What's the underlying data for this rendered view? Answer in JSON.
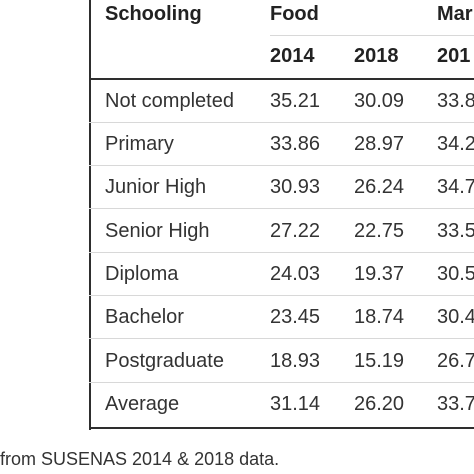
{
  "table": {
    "header": {
      "schooling": "Schooling",
      "groups": [
        "Food",
        "Mar"
      ],
      "years": [
        "2014",
        "2018",
        "201"
      ]
    },
    "rows": [
      {
        "label": "Not completed",
        "values": [
          "35.21",
          "30.09",
          "33.8"
        ]
      },
      {
        "label": "Primary",
        "values": [
          "33.86",
          "28.97",
          "34.2"
        ]
      },
      {
        "label": "Junior High",
        "values": [
          "30.93",
          "26.24",
          "34.7"
        ]
      },
      {
        "label": "Senior High",
        "values": [
          "27.22",
          "22.75",
          "33.5"
        ]
      },
      {
        "label": "Diploma",
        "values": [
          "24.03",
          "19.37",
          "30.5"
        ]
      },
      {
        "label": "Bachelor",
        "values": [
          "23.45",
          "18.74",
          "30.4"
        ]
      },
      {
        "label": "Postgraduate",
        "values": [
          "18.93",
          "15.19",
          "26.7"
        ]
      },
      {
        "label": "Average",
        "values": [
          "31.14",
          "26.20",
          "33.7"
        ]
      }
    ]
  },
  "source_note": "from SUSENAS 2014 & 2018 data."
}
